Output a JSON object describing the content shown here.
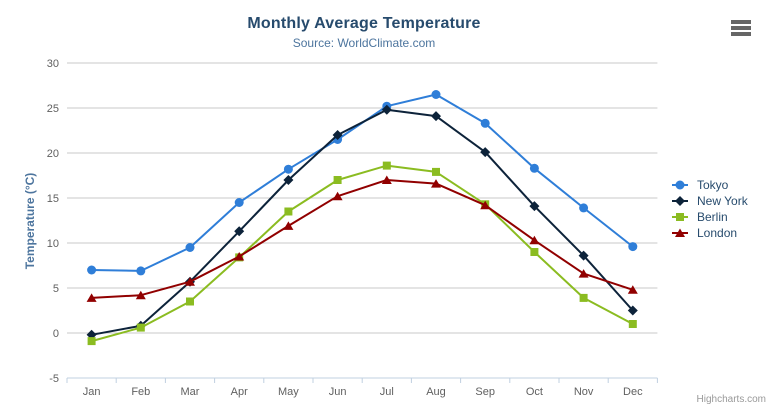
{
  "chart_data": {
    "type": "line",
    "title": "Monthly Average Temperature",
    "subtitle": "Source: WorldClimate.com",
    "xlabel": "",
    "ylabel": "Temperature (°C)",
    "categories": [
      "Jan",
      "Feb",
      "Mar",
      "Apr",
      "May",
      "Jun",
      "Jul",
      "Aug",
      "Sep",
      "Oct",
      "Nov",
      "Dec"
    ],
    "ylim": [
      -5,
      30
    ],
    "yticks": [
      -5,
      0,
      5,
      10,
      15,
      20,
      25,
      30
    ],
    "grid": true,
    "legend_position": "right",
    "series": [
      {
        "name": "Tokyo",
        "color": "#2f7ed8",
        "marker": "circle",
        "values": [
          7.0,
          6.9,
          9.5,
          14.5,
          18.2,
          21.5,
          25.2,
          26.5,
          23.3,
          18.3,
          13.9,
          9.6
        ]
      },
      {
        "name": "New York",
        "color": "#0d233a",
        "marker": "diamond",
        "values": [
          -0.2,
          0.8,
          5.7,
          11.3,
          17.0,
          22.0,
          24.8,
          24.1,
          20.1,
          14.1,
          8.6,
          2.5
        ]
      },
      {
        "name": "Berlin",
        "color": "#8bbc21",
        "marker": "square",
        "values": [
          -0.9,
          0.6,
          3.5,
          8.4,
          13.5,
          17.0,
          18.6,
          17.9,
          14.3,
          9.0,
          3.9,
          1.0
        ]
      },
      {
        "name": "London",
        "color": "#910000",
        "marker": "triangle",
        "values": [
          3.9,
          4.2,
          5.7,
          8.5,
          11.9,
          15.2,
          17.0,
          16.6,
          14.2,
          10.3,
          6.6,
          4.8
        ]
      }
    ]
  },
  "credits": "Highcharts.com",
  "export_button": {
    "icon": "hamburger-icon"
  },
  "colors": {
    "title": "#274b6d",
    "subtitle": "#4d759e",
    "y_axis_title": "#4d759e",
    "axis_labels": "#606060",
    "grid_line": "#c8c8c8",
    "axis_line": "#c0d0e0",
    "legend_text": "#274b6d",
    "credits": "#999999",
    "burger": "#666666",
    "background": "#ffffff"
  }
}
